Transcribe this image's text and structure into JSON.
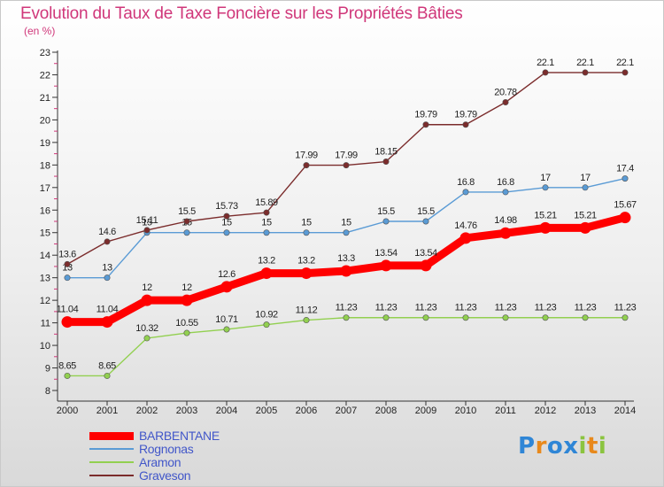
{
  "chart_data": {
    "type": "line",
    "title": "Evolution du Taux de Taxe Foncière sur les Propriétés Bâties",
    "subtitle": "(en %)",
    "x": [
      "2000",
      "2001",
      "2002",
      "2003",
      "2004",
      "2005",
      "2006",
      "2007",
      "2008",
      "2009",
      "2010",
      "2011",
      "2012",
      "2013",
      "2014"
    ],
    "ylim": [
      8,
      23
    ],
    "yticks": [
      8,
      9,
      10,
      11,
      12,
      13,
      14,
      15,
      16,
      17,
      18,
      19,
      20,
      21,
      22,
      23
    ],
    "grid": false,
    "series": [
      {
        "name": "BARBENTANE",
        "color": "#ff0000",
        "emphasis": true,
        "values": [
          11.04,
          11.04,
          12,
          12,
          12.6,
          13.2,
          13.2,
          13.3,
          13.54,
          13.54,
          14.76,
          14.98,
          15.21,
          15.21,
          15.67
        ],
        "labels": [
          "11.04",
          "11.04",
          "12",
          "12",
          "12.6",
          "13.2",
          "13.2",
          "13.3",
          "13.54",
          "13.54",
          "14.76",
          "14.98",
          "15.21",
          "15.21",
          "15.67"
        ]
      },
      {
        "name": "Rognonas",
        "color": "#5a9bd5",
        "values": [
          13,
          13,
          15,
          15,
          15,
          15,
          15,
          15,
          15.5,
          15.5,
          16.8,
          16.8,
          17,
          17,
          17.4
        ],
        "labels": [
          "13",
          "13",
          "15",
          "15",
          "15",
          "15",
          "15",
          "15",
          "15.5",
          "15.5",
          "16.8",
          "16.8",
          "17",
          "17",
          "17.4"
        ]
      },
      {
        "name": "Aramon",
        "color": "#92d050",
        "values": [
          8.65,
          8.65,
          10.32,
          10.55,
          10.71,
          10.92,
          11.12,
          11.23,
          11.23,
          11.23,
          11.23,
          11.23,
          11.23,
          11.23,
          11.23
        ],
        "labels": [
          "8.65",
          "8.65",
          "10.32",
          "10.55",
          "10.71",
          "10.92",
          "11.12",
          "11.23",
          "11.23",
          "11.23",
          "11.23",
          "11.23",
          "11.23",
          "11.23",
          "11.23"
        ]
      },
      {
        "name": "Graveson",
        "color": "#7b2c2c",
        "values": [
          13.6,
          14.6,
          15.11,
          15.5,
          15.73,
          15.89,
          17.99,
          17.99,
          18.15,
          19.79,
          19.79,
          20.78,
          22.1,
          22.1,
          22.1
        ],
        "labels": [
          "13.6",
          "14.6",
          "15.11",
          "15.5",
          "15.73",
          "15.89",
          "17.99",
          "17.99",
          "18.15",
          "19.79",
          "19.79",
          "20.78",
          "22.1",
          "22.1",
          "22.1"
        ]
      }
    ],
    "legend_position": "bottom-left"
  },
  "logo": {
    "text": "Proxiti",
    "letters": [
      {
        "ch": "P",
        "color": "#2f86d6"
      },
      {
        "ch": "r",
        "color": "#e8891c"
      },
      {
        "ch": "o",
        "color": "#2f86d6"
      },
      {
        "ch": "x",
        "color": "#2f86d6"
      },
      {
        "ch": "i",
        "color": "#8bc43f"
      },
      {
        "ch": "t",
        "color": "#e8891c"
      },
      {
        "ch": "i",
        "color": "#8bc43f"
      }
    ]
  }
}
